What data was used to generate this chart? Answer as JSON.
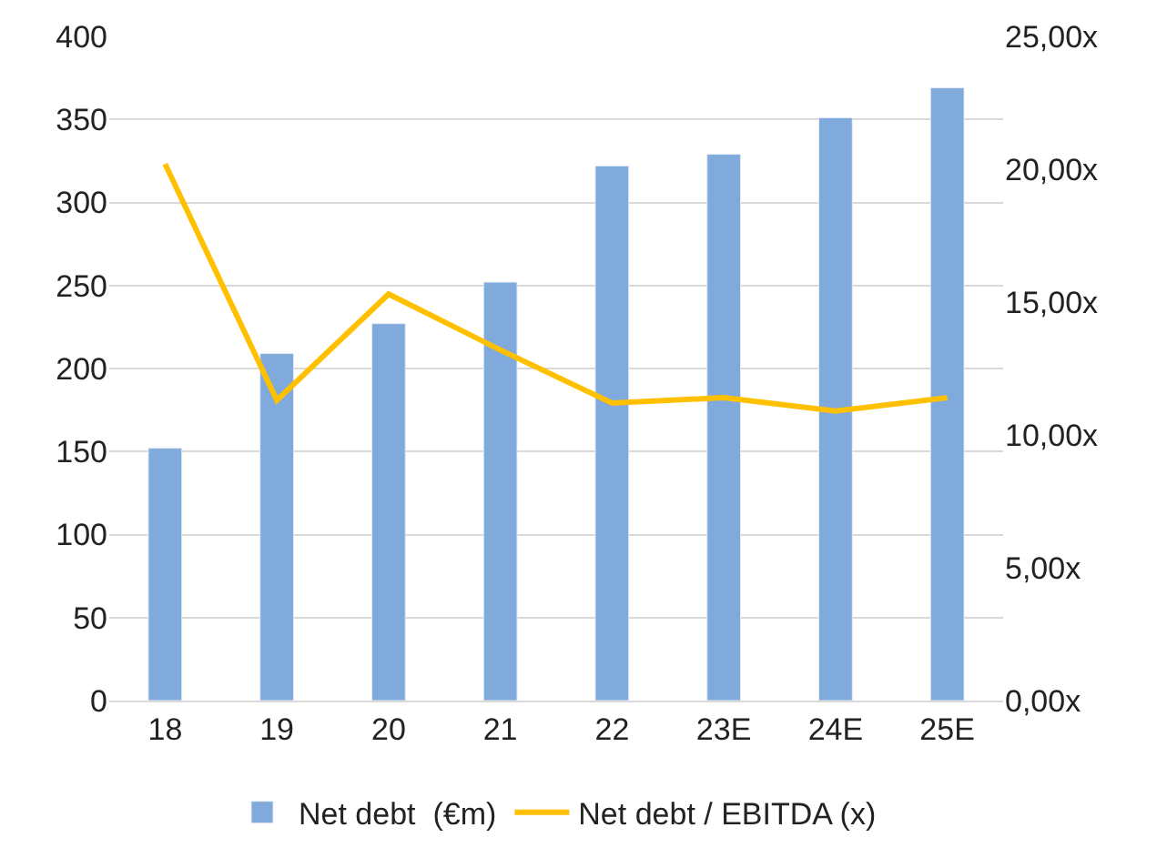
{
  "chart_data": {
    "type": "bar",
    "categories": [
      "18",
      "19",
      "20",
      "21",
      "22",
      "23E",
      "24E",
      "25E"
    ],
    "series": [
      {
        "name": "Net debt  (€m)",
        "color": "#7faadb",
        "values": [
          152,
          209,
          227,
          252,
          322,
          329,
          351,
          369
        ]
      },
      {
        "name": "Net debt / EBITDA (x)",
        "type": "line",
        "axis": "y2",
        "color": "#ffc000",
        "values": [
          20.2,
          11.3,
          15.3,
          13.2,
          11.2,
          11.4,
          10.9,
          11.4
        ]
      }
    ],
    "ylim": [
      0,
      400
    ],
    "yticks": [
      0,
      50,
      100,
      150,
      200,
      250,
      300,
      350,
      400
    ],
    "y2lim": [
      0,
      25
    ],
    "y2ticks": [
      {
        "value": 0,
        "label": "0,00x"
      },
      {
        "value": 5,
        "label": "5,00x"
      },
      {
        "value": 10,
        "label": "10,00x"
      },
      {
        "value": 15,
        "label": "15,00x"
      },
      {
        "value": 20,
        "label": "20,00x"
      },
      {
        "value": 25,
        "label": "25,00x"
      }
    ],
    "grid": "y",
    "legend": "bottom",
    "marker": "none",
    "line_style": "solid"
  }
}
